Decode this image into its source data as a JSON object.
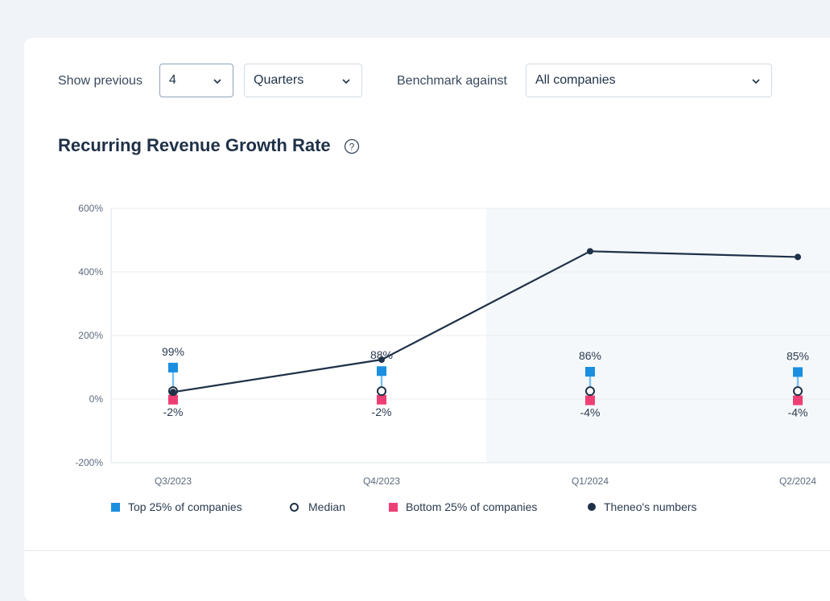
{
  "filters": {
    "show_previous_label": "Show previous",
    "count_value": "4",
    "period_value": "Quarters",
    "benchmark_label": "Benchmark against",
    "benchmark_value": "All companies"
  },
  "chart_title": "Recurring Revenue Growth Rate",
  "colors": {
    "top25": "#1a8fe0",
    "bottom25": "#ee3f74",
    "median": "#1f3148",
    "theneo": "#1f3148",
    "highlight_band": "#f5f8fb"
  },
  "chart_data": {
    "type": "line",
    "title": "Recurring Revenue Growth Rate",
    "categories": [
      "Q3/2023",
      "Q4/2023",
      "Q1/2024",
      "Q2/2024"
    ],
    "y_ticks": [
      "600%",
      "400%",
      "200%",
      "0%",
      "-200%"
    ],
    "ylim": [
      -200,
      600
    ],
    "highlight_from_category": "Q1/2024",
    "series": [
      {
        "name": "Top 25% of companies",
        "marker": "square",
        "values": [
          99,
          88,
          86,
          85
        ],
        "labels": [
          "99%",
          "88%",
          "86%",
          "85%"
        ]
      },
      {
        "name": "Median",
        "marker": "hollow-circle",
        "values": [
          25,
          25,
          25,
          25
        ]
      },
      {
        "name": "Bottom 25% of companies",
        "marker": "square",
        "values": [
          -2,
          -2,
          -4,
          -4
        ],
        "labels": [
          "-2%",
          "-2%",
          "-4%",
          "-4%"
        ]
      },
      {
        "name": "Theneo's numbers",
        "marker": "dot",
        "values": [
          22,
          124,
          465,
          447
        ]
      }
    ]
  }
}
